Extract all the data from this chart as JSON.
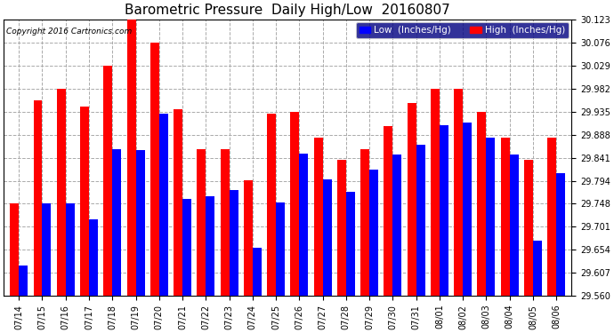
{
  "title": "Barometric Pressure  Daily High/Low  20160807",
  "copyright": "Copyright 2016 Cartronics.com",
  "legend_low": "Low  (Inches/Hg)",
  "legend_high": "High  (Inches/Hg)",
  "categories": [
    "07/14",
    "07/15",
    "07/16",
    "07/17",
    "07/18",
    "07/19",
    "07/20",
    "07/21",
    "07/22",
    "07/23",
    "07/24",
    "07/25",
    "07/26",
    "07/27",
    "07/28",
    "07/29",
    "07/30",
    "07/31",
    "08/01",
    "08/02",
    "08/03",
    "08/04",
    "08/05",
    "08/06"
  ],
  "low_values": [
    29.622,
    29.748,
    29.748,
    29.716,
    29.859,
    29.856,
    29.93,
    29.758,
    29.762,
    29.776,
    29.657,
    29.749,
    29.849,
    29.797,
    29.771,
    29.816,
    29.848,
    29.868,
    29.908,
    29.912,
    29.882,
    29.848,
    29.672,
    29.81
  ],
  "high_values": [
    29.748,
    29.958,
    29.982,
    29.946,
    30.029,
    30.123,
    30.076,
    29.94,
    29.858,
    29.858,
    29.796,
    29.93,
    29.935,
    29.882,
    29.836,
    29.858,
    29.906,
    29.953,
    29.982,
    29.982,
    29.935,
    29.882,
    29.836,
    29.882
  ],
  "ylim": [
    29.56,
    30.123
  ],
  "yticks": [
    29.56,
    29.607,
    29.654,
    29.701,
    29.748,
    29.794,
    29.841,
    29.888,
    29.935,
    29.982,
    30.029,
    30.076,
    30.123
  ],
  "bar_width": 0.38,
  "low_color": "#0000ff",
  "high_color": "#ff0000",
  "bg_color": "#ffffff",
  "grid_color": "#aaaaaa",
  "title_fontsize": 11,
  "tick_fontsize": 7,
  "legend_fontsize": 7.5,
  "copyright_fontsize": 6.5
}
